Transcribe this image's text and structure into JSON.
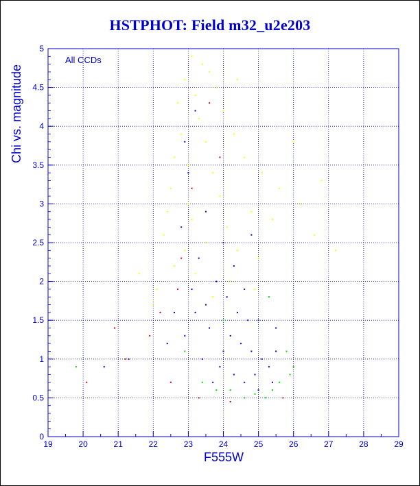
{
  "chart_data": {
    "type": "scatter",
    "title": "HSTPHOT: Field m32_u2e203",
    "xlabel": "F555W",
    "ylabel": "Chi vs. magnitude",
    "annotation": "All CCDs",
    "xlim": [
      19,
      29
    ],
    "ylim": [
      0,
      5
    ],
    "x_ticks": [
      19,
      20,
      21,
      22,
      23,
      24,
      25,
      26,
      27,
      28,
      29
    ],
    "y_ticks": [
      0,
      0.5,
      1,
      1.5,
      2,
      2.5,
      3,
      3.5,
      4,
      4.5,
      5
    ],
    "x_tick_labels": [
      "19",
      "20",
      "21",
      "22",
      "23",
      "24",
      "25",
      "26",
      "27",
      "28",
      "29"
    ],
    "y_tick_labels": [
      "0",
      "0.5",
      "1",
      "1.5",
      "2",
      "2.5",
      "3",
      "3.5",
      "4",
      "4.5",
      "5"
    ],
    "grid": true,
    "series": [
      {
        "color": "#ffff00",
        "points": [
          [
            23.1,
            4.9
          ],
          [
            23.4,
            4.8
          ],
          [
            22.9,
            4.6
          ],
          [
            23.6,
            4.7
          ],
          [
            23.2,
            4.4
          ],
          [
            22.7,
            4.3
          ],
          [
            23.8,
            4.5
          ],
          [
            23.3,
            4.1
          ],
          [
            22.8,
            3.9
          ],
          [
            23.5,
            3.8
          ],
          [
            24.0,
            4.2
          ],
          [
            22.6,
            3.6
          ],
          [
            23.0,
            3.5
          ],
          [
            23.7,
            3.4
          ],
          [
            24.3,
            3.9
          ],
          [
            22.5,
            3.2
          ],
          [
            23.9,
            3.1
          ],
          [
            24.6,
            3.6
          ],
          [
            25.1,
            3.4
          ],
          [
            25.6,
            3.2
          ],
          [
            26.2,
            3.0
          ],
          [
            22.4,
            2.9
          ],
          [
            23.1,
            2.8
          ],
          [
            24.1,
            2.7
          ],
          [
            24.8,
            2.9
          ],
          [
            25.4,
            2.8
          ],
          [
            22.3,
            2.6
          ],
          [
            23.5,
            2.5
          ],
          [
            24.4,
            2.4
          ],
          [
            25.0,
            2.3
          ],
          [
            22.6,
            2.2
          ],
          [
            23.2,
            2.1
          ],
          [
            24.2,
            2.0
          ],
          [
            22.1,
            1.9
          ],
          [
            23.7,
            1.8
          ],
          [
            24.9,
            1.9
          ],
          [
            26.6,
            2.6
          ],
          [
            27.2,
            2.4
          ],
          [
            21.6,
            2.1
          ],
          [
            22.0,
            1.7
          ],
          [
            26.0,
            3.8
          ],
          [
            26.8,
            3.3
          ],
          [
            24.4,
            4.6
          ],
          [
            23.0,
            3.0
          ],
          [
            22.9,
            2.4
          ]
        ]
      },
      {
        "color": "#0000cc",
        "points": [
          [
            23.3,
            2.3
          ],
          [
            23.8,
            2.0
          ],
          [
            24.1,
            1.8
          ],
          [
            24.4,
            1.6
          ],
          [
            24.7,
            1.5
          ],
          [
            24.2,
            1.3
          ],
          [
            24.5,
            1.2
          ],
          [
            24.8,
            1.1
          ],
          [
            25.1,
            1.0
          ],
          [
            24.0,
            1.1
          ],
          [
            23.6,
            1.4
          ],
          [
            23.9,
            0.9
          ],
          [
            24.3,
            0.8
          ],
          [
            24.9,
            0.8
          ],
          [
            25.3,
            0.9
          ],
          [
            25.5,
            1.1
          ],
          [
            23.5,
            1.7
          ],
          [
            23.2,
            1.6
          ],
          [
            22.9,
            1.3
          ],
          [
            23.4,
            1.0
          ],
          [
            24.6,
            0.7
          ],
          [
            25.0,
            0.6
          ],
          [
            25.4,
            0.7
          ],
          [
            23.0,
            3.4
          ],
          [
            22.8,
            2.7
          ],
          [
            23.5,
            2.9
          ],
          [
            24.0,
            2.5
          ],
          [
            23.1,
            1.9
          ],
          [
            24.3,
            2.2
          ],
          [
            25.0,
            1.5
          ],
          [
            25.5,
            1.4
          ],
          [
            22.6,
            1.6
          ],
          [
            22.4,
            1.2
          ],
          [
            23.7,
            0.7
          ],
          [
            24.6,
            1.9
          ],
          [
            23.2,
            4.2
          ],
          [
            22.9,
            3.8
          ],
          [
            21.3,
            1.0
          ],
          [
            20.6,
            0.9
          ],
          [
            24.8,
            2.6
          ]
        ]
      },
      {
        "color": "#00dd00",
        "points": [
          [
            24.2,
            0.6
          ],
          [
            24.6,
            0.5
          ],
          [
            25.2,
            0.5
          ],
          [
            25.6,
            0.7
          ],
          [
            23.8,
            0.6
          ],
          [
            25.8,
            1.1
          ],
          [
            25.9,
            0.8
          ],
          [
            23.4,
            0.7
          ],
          [
            24.9,
            0.55
          ],
          [
            25.4,
            0.6
          ],
          [
            24.0,
            1.5
          ],
          [
            25.3,
            1.8
          ],
          [
            22.9,
            1.1
          ],
          [
            26.0,
            0.9
          ],
          [
            19.8,
            0.9
          ]
        ]
      },
      {
        "color": "#cc0000",
        "points": [
          [
            23.1,
            3.2
          ],
          [
            22.8,
            2.3
          ],
          [
            23.6,
            4.3
          ],
          [
            22.2,
            1.6
          ],
          [
            21.9,
            1.3
          ],
          [
            22.5,
            0.7
          ],
          [
            20.9,
            1.4
          ],
          [
            23.3,
            0.5
          ],
          [
            20.1,
            0.7
          ],
          [
            24.2,
            0.45
          ],
          [
            21.2,
            1.0
          ],
          [
            22.7,
            1.9
          ],
          [
            25.7,
            0.5
          ],
          [
            23.9,
            3.6
          ]
        ]
      }
    ]
  }
}
